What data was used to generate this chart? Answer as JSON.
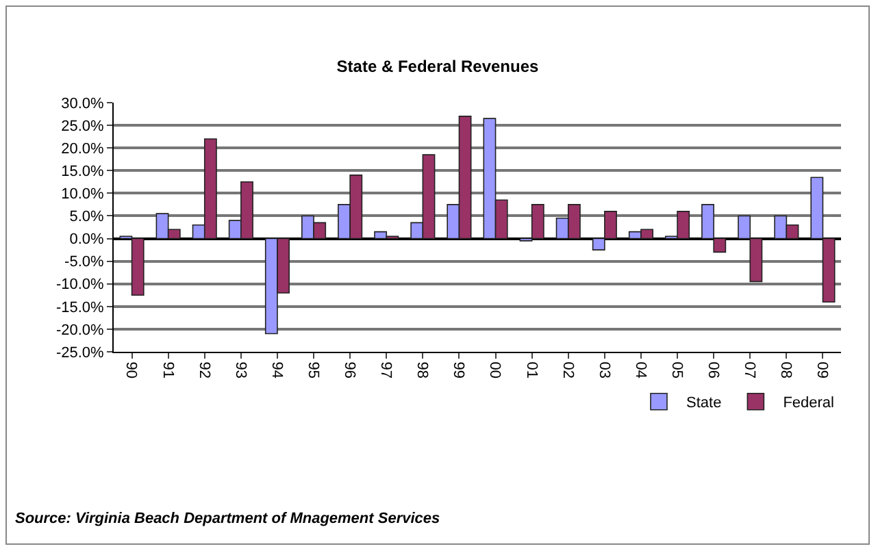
{
  "chart_data": {
    "type": "bar",
    "title": "State & Federal Revenues",
    "categories": [
      "90",
      "91",
      "92",
      "93",
      "94",
      "95",
      "96",
      "97",
      "98",
      "99",
      "00",
      "01",
      "02",
      "03",
      "04",
      "05",
      "06",
      "07",
      "08",
      "09"
    ],
    "series": [
      {
        "name": "State",
        "color": "#9999ff",
        "values": [
          0.5,
          5.5,
          3,
          4,
          -21,
          5,
          7.5,
          1.5,
          3.5,
          7.5,
          26.5,
          -0.5,
          4.5,
          -2.5,
          1.5,
          0.5,
          7.5,
          5,
          5,
          13.5
        ]
      },
      {
        "name": "Federal",
        "color": "#993366",
        "values": [
          -12.5,
          2,
          22,
          12.5,
          -12,
          3.5,
          14,
          0.5,
          18.5,
          27,
          8.5,
          7.5,
          7.5,
          6,
          2,
          6,
          -3,
          -9.5,
          3,
          -14
        ]
      }
    ],
    "ylim": [
      -25,
      30
    ],
    "yticks": [
      {
        "value": -25,
        "label": "-25.0%"
      },
      {
        "value": -20,
        "label": "-20.0%"
      },
      {
        "value": -15,
        "label": "-15.0%"
      },
      {
        "value": -10,
        "label": "-10.0%"
      },
      {
        "value": -5,
        "label": "-5.0%"
      },
      {
        "value": 0,
        "label": "0.0%"
      },
      {
        "value": 5,
        "label": "5.0%"
      },
      {
        "value": 10,
        "label": "10.0%"
      },
      {
        "value": 15,
        "label": "15.0%"
      },
      {
        "value": 20,
        "label": "20.0%"
      },
      {
        "value": 25,
        "label": "25.0%"
      },
      {
        "value": 30,
        "label": "30.0%"
      }
    ],
    "grid": "y",
    "legend": "bottom right",
    "annotations": [
      "Source: Virginia Beach Department of Mnagement Services"
    ]
  }
}
